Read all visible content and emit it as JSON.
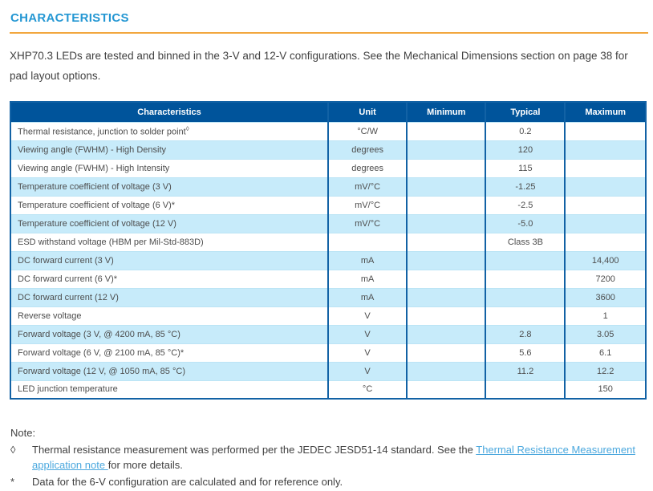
{
  "page": {
    "title": "CHARACTERISTICS",
    "intro": "XHP70.3 LEDs are tested and binned in the 3-V and 12-V configurations. See the Mechanical Dimensions section on page 38 for pad layout options."
  },
  "colors": {
    "accent_blue": "#2497D3",
    "rule_orange": "#F2A73E",
    "header_bg": "#00549B",
    "row_alt": "#C7EBFA",
    "border_blue": "#1262A5",
    "link": "#4BA8DE"
  },
  "table": {
    "columns": [
      "Characteristics",
      "Unit",
      "Minimum",
      "Typical",
      "Maximum"
    ],
    "rows": [
      {
        "characteristic": "Thermal resistance, junction to solder point",
        "sup": "◊",
        "unit": "°C/W",
        "min": "",
        "typ": "0.2",
        "max": ""
      },
      {
        "characteristic": "Viewing angle (FWHM) - High Density",
        "sup": "",
        "unit": "degrees",
        "min": "",
        "typ": "120",
        "max": ""
      },
      {
        "characteristic": "Viewing angle (FWHM) - High Intensity",
        "sup": "",
        "unit": "degrees",
        "min": "",
        "typ": "115",
        "max": ""
      },
      {
        "characteristic": "Temperature coefficient of voltage (3 V)",
        "sup": "",
        "unit": "mV/°C",
        "min": "",
        "typ": "-1.25",
        "max": ""
      },
      {
        "characteristic": "Temperature coefficient of voltage (6 V)*",
        "sup": "",
        "unit": "mV/°C",
        "min": "",
        "typ": "-2.5",
        "max": ""
      },
      {
        "characteristic": "Temperature coefficient of voltage (12 V)",
        "sup": "",
        "unit": "mV/°C",
        "min": "",
        "typ": "-5.0",
        "max": ""
      },
      {
        "characteristic": "ESD withstand voltage (HBM per Mil-Std-883D)",
        "sup": "",
        "unit": "",
        "min": "",
        "typ": "Class 3B",
        "max": ""
      },
      {
        "characteristic": "DC forward current (3 V)",
        "sup": "",
        "unit": "mA",
        "min": "",
        "typ": "",
        "max": "14,400"
      },
      {
        "characteristic": "DC forward current (6 V)*",
        "sup": "",
        "unit": "mA",
        "min": "",
        "typ": "",
        "max": "7200"
      },
      {
        "characteristic": "DC forward current (12 V)",
        "sup": "",
        "unit": "mA",
        "min": "",
        "typ": "",
        "max": "3600"
      },
      {
        "characteristic": "Reverse voltage",
        "sup": "",
        "unit": "V",
        "min": "",
        "typ": "",
        "max": "1"
      },
      {
        "characteristic": "Forward voltage (3 V, @ 4200 mA, 85 °C)",
        "sup": "",
        "unit": "V",
        "min": "",
        "typ": "2.8",
        "max": "3.05"
      },
      {
        "characteristic": "Forward voltage (6 V, @ 2100 mA, 85 °C)*",
        "sup": "",
        "unit": "V",
        "min": "",
        "typ": "5.6",
        "max": "6.1"
      },
      {
        "characteristic": "Forward voltage (12 V, @ 1050 mA, 85 °C)",
        "sup": "",
        "unit": "V",
        "min": "",
        "typ": "11.2",
        "max": "12.2"
      },
      {
        "characteristic": "LED junction temperature",
        "sup": "",
        "unit": "°C",
        "min": "",
        "typ": "",
        "max": "150"
      }
    ]
  },
  "notes": {
    "heading": "Note:",
    "items": [
      {
        "marker": "◊",
        "text_before_link": "Thermal resistance measurement was performed per the JEDEC JESD51-14 standard. See the ",
        "link": "Thermal Resistance Measurement application note ",
        "text_after_link": "for more details."
      },
      {
        "marker": "*",
        "text_before_link": "Data for the 6-V configuration are calculated and for reference only.",
        "link": "",
        "text_after_link": ""
      }
    ]
  }
}
